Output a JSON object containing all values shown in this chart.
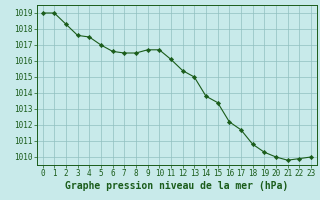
{
  "x": [
    0,
    1,
    2,
    3,
    4,
    5,
    6,
    7,
    8,
    9,
    10,
    11,
    12,
    13,
    14,
    15,
    16,
    17,
    18,
    19,
    20,
    21,
    22,
    23
  ],
  "y": [
    1019.0,
    1019.0,
    1018.3,
    1017.6,
    1017.5,
    1017.0,
    1016.6,
    1016.5,
    1016.5,
    1016.7,
    1016.7,
    1016.1,
    1015.4,
    1015.0,
    1013.8,
    1013.4,
    1012.2,
    1011.7,
    1010.8,
    1010.3,
    1010.0,
    1009.8,
    1009.9,
    1010.0
  ],
  "line_color": "#1a5c1a",
  "marker_color": "#1a5c1a",
  "bg_color": "#c8eaea",
  "grid_color": "#90c0c0",
  "title": "Graphe pression niveau de la mer (hPa)",
  "ylim_min": 1009.5,
  "ylim_max": 1019.5,
  "yticks": [
    1010,
    1011,
    1012,
    1013,
    1014,
    1015,
    1016,
    1017,
    1018,
    1019
  ],
  "xticks": [
    0,
    1,
    2,
    3,
    4,
    5,
    6,
    7,
    8,
    9,
    10,
    11,
    12,
    13,
    14,
    15,
    16,
    17,
    18,
    19,
    20,
    21,
    22,
    23
  ],
  "title_color": "#1a5c1a",
  "tick_color": "#1a5c1a",
  "title_fontsize": 7.0,
  "tick_fontsize": 5.5,
  "spine_color": "#1a5c1a"
}
